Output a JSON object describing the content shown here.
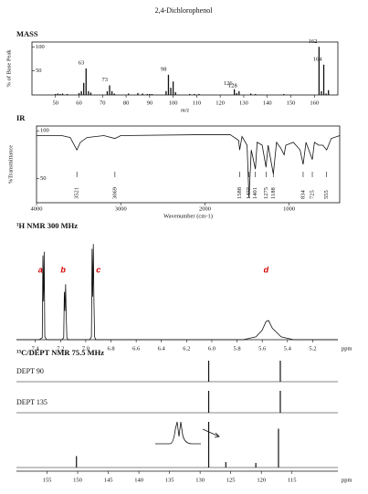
{
  "title": "2,4-Dichlorophenol",
  "chart_data": [
    {
      "type": "bar",
      "title": "MASS",
      "ylabel": "% of Base Peak",
      "xlabel": "m/z",
      "x": [
        50,
        51,
        52,
        53,
        55,
        60,
        61,
        62,
        63,
        64,
        65,
        72,
        73,
        74,
        75,
        81,
        85,
        87,
        89,
        90,
        91,
        97,
        98,
        99,
        100,
        101,
        107,
        109,
        111,
        126,
        127,
        128,
        133,
        135,
        147,
        162,
        163,
        164,
        165,
        166
      ],
      "values": [
        2,
        3,
        2,
        3,
        2,
        4,
        8,
        25,
        55,
        8,
        5,
        8,
        20,
        8,
        3,
        3,
        4,
        3,
        2,
        2,
        2,
        8,
        42,
        15,
        28,
        6,
        2,
        2,
        2,
        12,
        4,
        8,
        3,
        2,
        2,
        100,
        8,
        63,
        3,
        10
      ],
      "annotations": [
        63,
        73,
        98,
        126,
        128,
        162,
        164
      ],
      "color": "#111111",
      "xlim": [
        40,
        170
      ],
      "xticks": [
        50,
        60,
        70,
        80,
        90,
        100,
        110,
        120,
        130,
        140,
        150,
        160
      ],
      "ylim": [
        0,
        110
      ],
      "yticks": [
        50,
        100
      ]
    },
    {
      "type": "line",
      "title": "IR",
      "ylabel": "%Transmittance",
      "xlabel": "Wavenumber (cm-1)",
      "x": [
        4000,
        3700,
        3600,
        3521,
        3480,
        3400,
        3200,
        3069,
        3000,
        2000,
        1700,
        1600,
        1588,
        1560,
        1500,
        1477,
        1450,
        1401,
        1380,
        1320,
        1275,
        1250,
        1188,
        1150,
        1100,
        1060,
        1040,
        950,
        870,
        834,
        800,
        725,
        700,
        650,
        600,
        555,
        500,
        400
      ],
      "values": [
        95,
        95,
        93,
        80,
        88,
        93,
        95,
        92,
        95,
        96,
        96,
        90,
        80,
        94,
        85,
        30,
        80,
        60,
        88,
        85,
        62,
        85,
        55,
        88,
        82,
        75,
        85,
        88,
        80,
        65,
        88,
        70,
        88,
        85,
        85,
        80,
        92,
        95
      ],
      "annotations": [
        3521,
        3069,
        1588,
        1477,
        1401,
        1275,
        1188,
        834,
        725,
        555
      ],
      "color": "#111111",
      "xlim": [
        4000,
        400
      ],
      "xticks": [
        4000,
        3000,
        2000,
        1000
      ],
      "ylim": [
        25,
        105
      ],
      "yticks": [
        50,
        100
      ]
    },
    {
      "type": "line",
      "title": "¹H NMR 300 MHz",
      "xlabel": "ppm",
      "x": [
        7.55,
        7.37,
        7.345,
        7.34,
        7.335,
        7.33,
        7.325,
        7.31,
        7.19,
        7.175,
        7.17,
        7.165,
        7.16,
        7.155,
        7.15,
        7.14,
        6.97,
        6.955,
        6.95,
        6.945,
        6.94,
        6.935,
        6.93,
        6.92,
        5.75,
        5.65,
        5.6,
        5.57,
        5.55,
        5.52,
        5.45,
        5.35,
        5.0
      ],
      "values": [
        0,
        0,
        2,
        88,
        40,
        92,
        3,
        0,
        0,
        2,
        50,
        30,
        58,
        25,
        2,
        0,
        0,
        3,
        95,
        45,
        100,
        40,
        3,
        0,
        0,
        3,
        10,
        19,
        20,
        12,
        3,
        0,
        0
      ],
      "annotations": [
        {
          "text": "a",
          "x": 7.36
        },
        {
          "text": "b",
          "x": 7.18
        },
        {
          "text": "c",
          "x": 6.9
        },
        {
          "text": "d",
          "x": 5.57
        }
      ],
      "color": "#111111",
      "xlim": [
        7.55,
        5.0
      ],
      "xticks": [
        7.4,
        7.2,
        {
          "value": 7.0,
          "label": "7.0"
        },
        6.8,
        6.6,
        6.4,
        6.2,
        {
          "value": 6.0,
          "label": "6.0"
        },
        5.8,
        5.6,
        5.4,
        5.2
      ],
      "ylim": [
        0,
        105
      ]
    },
    {
      "type": "stick",
      "title": "¹³C/DEPT NMR 75.5 MHz",
      "xlabel": "ppm",
      "series": [
        {
          "name": "DEPT 90",
          "color": "#111111",
          "x": [
            128.6,
            116.9
          ],
          "values": [
            100,
            100
          ]
        },
        {
          "name": "DEPT 135",
          "color": "#111111",
          "x": [
            128.6,
            116.9
          ],
          "values": [
            100,
            100
          ]
        },
        {
          "color": "#111111",
          "x": [
            150.2,
            128.6,
            125.8,
            120.9,
            117.2
          ],
          "values": [
            25,
            100,
            12,
            10,
            85
          ]
        }
      ],
      "xlim": [
        160,
        107.5
      ],
      "xticks": [
        155,
        150,
        145,
        140,
        135,
        130,
        125,
        120,
        115
      ],
      "ylim": [
        0,
        100
      ]
    }
  ]
}
